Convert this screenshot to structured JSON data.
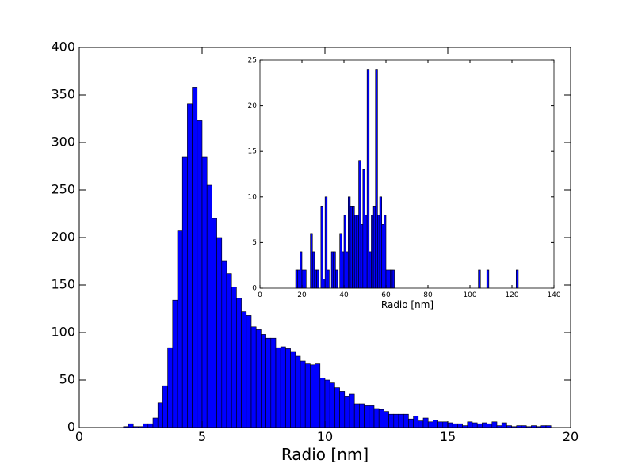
{
  "chart_data": [
    {
      "type": "bar",
      "xlabel": "Radio [nm]",
      "ylabel": "",
      "xlim": [
        0,
        20
      ],
      "ylim": [
        0,
        400
      ],
      "xticks": [
        0,
        5,
        10,
        15,
        20
      ],
      "yticks": [
        0,
        50,
        100,
        150,
        200,
        250,
        300,
        350,
        400
      ],
      "bin_width": 0.2,
      "bar_color": "#0000ff",
      "x": [
        1.8,
        2.0,
        2.2,
        2.4,
        2.6,
        2.8,
        3.0,
        3.2,
        3.4,
        3.6,
        3.8,
        4.0,
        4.2,
        4.4,
        4.6,
        4.8,
        5.0,
        5.2,
        5.4,
        5.6,
        5.8,
        6.0,
        6.2,
        6.4,
        6.6,
        6.8,
        7.0,
        7.2,
        7.4,
        7.6,
        7.8,
        8.0,
        8.2,
        8.4,
        8.6,
        8.8,
        9.0,
        9.2,
        9.4,
        9.6,
        9.8,
        10.0,
        10.2,
        10.4,
        10.6,
        10.8,
        11.0,
        11.2,
        11.4,
        11.6,
        11.8,
        12.0,
        12.2,
        12.4,
        12.6,
        12.8,
        13.0,
        13.2,
        13.4,
        13.6,
        13.8,
        14.0,
        14.2,
        14.4,
        14.6,
        14.8,
        15.0,
        15.2,
        15.4,
        15.6,
        15.8,
        16.0,
        16.2,
        16.4,
        16.6,
        16.8,
        17.0,
        17.2,
        17.4,
        17.6,
        17.8,
        18.0,
        18.2,
        18.4,
        18.6,
        18.8,
        19.0
      ],
      "values": [
        1,
        4,
        1,
        1,
        4,
        4,
        10,
        26,
        44,
        84,
        134,
        207,
        285,
        341,
        358,
        323,
        285,
        255,
        220,
        200,
        175,
        162,
        148,
        136,
        122,
        118,
        106,
        103,
        98,
        94,
        94,
        84,
        85,
        83,
        80,
        75,
        70,
        67,
        66,
        67,
        52,
        50,
        47,
        42,
        38,
        33,
        35,
        25,
        25,
        23,
        23,
        20,
        19,
        17,
        14,
        14,
        14,
        14,
        9,
        12,
        7,
        10,
        6,
        8,
        6,
        6,
        5,
        4,
        4,
        2,
        6,
        5,
        4,
        5,
        4,
        6,
        2,
        5,
        2,
        1,
        2,
        2,
        1,
        2,
        1,
        2,
        2
      ]
    },
    {
      "type": "bar",
      "xlabel": "Radio [nm]",
      "ylabel": "",
      "xlim": [
        0,
        140
      ],
      "ylim": [
        0,
        25
      ],
      "xticks": [
        0,
        20,
        40,
        60,
        80,
        100,
        120,
        140
      ],
      "yticks": [
        0,
        5,
        10,
        15,
        20,
        25
      ],
      "bin_width": 1,
      "bar_color": "#0000ff",
      "x": [
        17,
        18,
        19,
        20,
        21,
        24,
        25,
        26,
        27,
        29,
        30,
        31,
        32,
        34,
        35,
        36,
        38,
        39,
        40,
        41,
        42,
        43,
        44,
        45,
        46,
        47,
        48,
        49,
        50,
        51,
        52,
        53,
        54,
        55,
        56,
        57,
        58,
        59,
        60,
        61,
        62,
        63,
        104,
        108,
        122
      ],
      "values": [
        2,
        2,
        4,
        2,
        2,
        6,
        4,
        2,
        2,
        9,
        1,
        10,
        2,
        4,
        4,
        2,
        6,
        4,
        8,
        4,
        10,
        9,
        9,
        8,
        8,
        14,
        7,
        13,
        8,
        24,
        4,
        8,
        9,
        24,
        8,
        10,
        7,
        8,
        2,
        2,
        2,
        2,
        2,
        2,
        2
      ]
    }
  ]
}
